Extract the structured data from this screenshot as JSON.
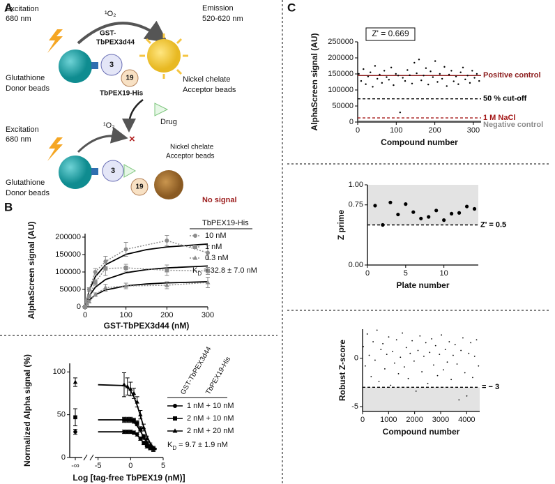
{
  "panel_labels": [
    "A",
    "B",
    "C"
  ],
  "panel_a": {
    "excitation_1": "Excitation",
    "nm_1": "680 nm",
    "o2_1": "¹O₂",
    "emission": "Emission",
    "emission_range": "520-620 nm",
    "gst": "GST-",
    "pex3": "TbPEX3d44",
    "bead3_1": "3",
    "bead19_1": "19",
    "pex19": "TbPEX19-His",
    "donor_1a": "Glutathione",
    "donor_1b": "Donor beads",
    "acceptor_1a": "Nickel chelate",
    "acceptor_1b": "Acceptor beads",
    "drug": "Drug",
    "excitation_2": "Excitation",
    "nm_2": "680 nm",
    "o2_2": "¹O₂",
    "bead3_2": "3",
    "acceptor_2a": "Nickel chelate",
    "acceptor_2b": "Acceptor beads",
    "bead19_2": "19",
    "donor_2a": "Glutathione",
    "donor_2b": "Donor beads",
    "no_signal": "No signal"
  },
  "chart_data": [
    {
      "type": "line",
      "x_label": "GST-TbPEX3d44 (nM)",
      "y_label": "AlphaScreen signal (AU)",
      "x": [
        0,
        5,
        10,
        25,
        50,
        100,
        200,
        300
      ],
      "xlim": [
        0,
        300
      ],
      "ylim": [
        0,
        210000
      ],
      "xticks": [
        0,
        100,
        200,
        300
      ],
      "yticks": [
        0,
        50000,
        100000,
        150000,
        200000
      ],
      "legend_title": "TbPEX19-His",
      "kd": [
        "K",
        "D",
        " = 32.8 ± 7.0 nM"
      ],
      "series": [
        {
          "name": "10 nM",
          "color": "#8c8c8c",
          "marker": "circle",
          "line": "dotted",
          "values": [
            0,
            20000,
            50000,
            100000,
            130000,
            165000,
            190000,
            155000
          ],
          "errors": [
            0,
            3000,
            5000,
            10000,
            15000,
            20000,
            15000,
            20000
          ],
          "fit": {
            "x": [
              0,
              10,
              25,
              50,
              100,
              150,
              200,
              300
            ],
            "values": [
              0,
              46700,
              86500,
              120800,
              150600,
              164100,
              171800,
              180300
            ],
            "color": "#000000"
          }
        },
        {
          "name": "1 nM",
          "color": "#8c8c8c",
          "marker": "square",
          "line": "dotted",
          "values": [
            0,
            15000,
            30000,
            70000,
            110000,
            112000,
            105000,
            103000
          ],
          "errors": [
            0,
            2000,
            4000,
            8000,
            20000,
            10000,
            15000,
            10000
          ],
          "fit": {
            "x": [
              0,
              10,
              25,
              50,
              100,
              150,
              200,
              300
            ],
            "values": [
              0,
              30400,
              56200,
              78500,
              97900,
              106700,
              111700,
              117200
            ],
            "color": "#000000"
          }
        },
        {
          "name": "0.3 nM",
          "color": "#8c8c8c",
          "marker": "triangle",
          "line": "dotted",
          "values": [
            0,
            8000,
            15000,
            35000,
            55000,
            60000,
            62000,
            70000
          ],
          "errors": [
            0,
            2000,
            3000,
            5000,
            10000,
            8000,
            10000,
            15000
          ],
          "fit": {
            "x": [
              0,
              10,
              25,
              50,
              100,
              150,
              200,
              300
            ],
            "values": [
              0,
              18700,
              34600,
              48300,
              60200,
              65600,
              68700,
              72100
            ],
            "color": "#000000"
          }
        }
      ]
    },
    {
      "type": "line",
      "x_label": "Log [tag-free TbPEX19 (nM)]",
      "y_label": "Normalized Alpha signal (%)",
      "x": [
        -1,
        -0.5,
        0,
        0.5,
        1,
        1.5,
        2,
        2.5,
        3,
        3.5
      ],
      "xlim": [
        -5.5,
        5
      ],
      "ylim": [
        0,
        110
      ],
      "xticks": [
        -5,
        0,
        5
      ],
      "yticks": [
        0,
        50,
        100
      ],
      "break_label": "-∞",
      "legend_titles": [
        "GST-TbPEX3d44",
        "TbPEX19-His"
      ],
      "kd": [
        "K",
        "D",
        " = 9.7 ± 1.9 nM"
      ],
      "series": [
        {
          "name": "1 nM + 10 nM",
          "color": "#000000",
          "marker": "circle",
          "values": [
            30,
            30,
            30,
            29,
            27,
            22,
            17,
            13,
            11,
            10
          ],
          "errors": [
            2,
            2,
            2,
            2,
            2,
            2,
            2,
            2,
            2,
            2
          ],
          "neg_inf_value": 30,
          "neg_inf_error": 3,
          "fit": {
            "x": [
              -5,
              -1,
              -0.5,
              0,
              0.5,
              1,
              1.5,
              2,
              2.5,
              3,
              3.5,
              4
            ],
            "values": [
              30,
              30,
              30,
              29.5,
              28.5,
              26,
              22,
              17,
              13,
              11,
              10,
              9.5
            ],
            "color": "#000000"
          }
        },
        {
          "name": "2 nM + 10 nM",
          "color": "#000000",
          "marker": "square",
          "values": [
            44,
            44,
            44,
            43,
            40,
            33,
            24,
            16,
            12,
            10
          ],
          "errors": [
            3,
            3,
            3,
            3,
            3,
            3,
            3,
            3,
            3,
            3
          ],
          "neg_inf_value": 47,
          "neg_inf_error": 10,
          "fit": {
            "x": [
              -5,
              -1,
              -0.5,
              0,
              0.5,
              1,
              1.5,
              2,
              2.5,
              3,
              3.5,
              4
            ],
            "values": [
              44,
              44,
              43.5,
              43,
              41,
              37,
              31,
              24,
              17,
              13,
              11,
              10
            ],
            "color": "#000000"
          }
        },
        {
          "name": "2 nM + 20 nM",
          "color": "#000000",
          "marker": "triangle",
          "values": [
            85,
            83,
            80,
            75,
            65,
            50,
            35,
            22,
            14,
            11
          ],
          "errors": [
            14,
            10,
            8,
            6,
            6,
            5,
            4,
            3,
            3,
            2
          ],
          "neg_inf_value": 88,
          "neg_inf_error": 5,
          "fit": {
            "x": [
              -5,
              -1,
              -0.5,
              0,
              0.5,
              1,
              1.5,
              2,
              2.5,
              3,
              3.5,
              4
            ],
            "values": [
              85,
              84,
              82,
              78,
              71,
              61,
              49,
              36,
              25,
              17,
              12,
              10
            ],
            "color": "#000000"
          }
        }
      ]
    },
    {
      "type": "scatter",
      "x_label": "Compound number",
      "y_label": "AlphaScreen signal (AU)",
      "annotation": "Z' = 0.669",
      "xlim": [
        0,
        320
      ],
      "ylim": [
        0,
        250000
      ],
      "xticks": [
        0,
        100,
        200,
        300
      ],
      "yticks": [
        0,
        50000,
        100000,
        150000,
        200000,
        250000
      ],
      "hlines": [
        {
          "value": 145000,
          "label": "Positive control",
          "color": "#8b1a1a",
          "dash": false
        },
        {
          "value": 72500,
          "label": "50 % cut-off",
          "color": "#000000",
          "dash": true
        },
        {
          "value": 13000,
          "label": "1 M NaCl",
          "color": "#a31515",
          "dash": true
        },
        {
          "value": 3000,
          "label": "Negative control",
          "color": "#8c8c8c",
          "dash": false
        }
      ],
      "series": [
        {
          "color": "#000000",
          "marker": "circle",
          "x": [
            3,
            9,
            15,
            21,
            27,
            33,
            39,
            45,
            51,
            57,
            63,
            69,
            75,
            81,
            87,
            93,
            99,
            105,
            110,
            117,
            123,
            129,
            135,
            141,
            147,
            153,
            159,
            165,
            171,
            177,
            183,
            189,
            195,
            201,
            207,
            213,
            219,
            225,
            231,
            237,
            243,
            249,
            255,
            261,
            267,
            273,
            279,
            285,
            291,
            297,
            303,
            309,
            315
          ],
          "values": [
            150000,
            128000,
            165000,
            118000,
            142000,
            155000,
            110000,
            175000,
            135000,
            148000,
            122000,
            160000,
            140000,
            132000,
            170000,
            115000,
            150000,
            145000,
            30000,
            138000,
            128000,
            162000,
            146000,
            120000,
            185000,
            152000,
            195000,
            130000,
            145000,
            168000,
            117000,
            158000,
            140000,
            190000,
            125000,
            150000,
            135000,
            172000,
            112000,
            148000,
            160000,
            127000,
            142000,
            118000,
            155000,
            170000,
            133000,
            145000,
            122000,
            160000,
            138000,
            150000,
            128000
          ]
        }
      ]
    },
    {
      "type": "scatter",
      "x_label": "Plate number",
      "y_label": "Z prime",
      "xlim": [
        0,
        14.5
      ],
      "ylim": [
        0,
        1
      ],
      "xticks": [
        0,
        5,
        10
      ],
      "yticks": [
        {
          "value": 0,
          "label": "0.00"
        },
        {
          "value": 0.75,
          "label": "0.75"
        },
        {
          "value": 1,
          "label": "1.00"
        }
      ],
      "shade": [
        0.5,
        1
      ],
      "shade_color": "#e3e3e3",
      "hlines": [
        {
          "value": 0.5,
          "label": "Z' = 0.5",
          "color": "#000000",
          "dash": true
        }
      ],
      "series": [
        {
          "color": "#000000",
          "marker": "circle",
          "x": [
            1,
            2,
            3,
            4,
            5,
            6,
            7,
            8,
            9,
            10,
            11,
            12,
            13,
            14
          ],
          "values": [
            0.74,
            0.5,
            0.78,
            0.63,
            0.76,
            0.66,
            0.58,
            0.6,
            0.68,
            0.56,
            0.64,
            0.65,
            0.73,
            0.7
          ]
        }
      ]
    },
    {
      "type": "scatter",
      "x_label": "Compound number",
      "y_label": "Robust Z-score",
      "xlim": [
        0,
        4500
      ],
      "ylim": [
        -5.5,
        3
      ],
      "xticks": [
        0,
        1000,
        2000,
        3000,
        4000
      ],
      "yticks": [
        -5,
        0
      ],
      "shade": [
        -5.5,
        -3
      ],
      "shade_color": "#e3e3e3",
      "hlines": [
        {
          "value": -3,
          "label": "= − 3",
          "color": "#000000",
          "dash": true
        }
      ],
      "series": [
        {
          "color": "#000000",
          "marker": "circle",
          "x": [
            30,
            105,
            180,
            255,
            330,
            405,
            480,
            555,
            630,
            705,
            780,
            855,
            930,
            1005,
            1080,
            1155,
            1230,
            1305,
            1380,
            1455,
            1530,
            1605,
            1680,
            1755,
            1830,
            1905,
            1980,
            2055,
            2130,
            2205,
            2280,
            2355,
            2430,
            2505,
            2580,
            2655,
            2730,
            2805,
            2880,
            2955,
            3030,
            3105,
            3180,
            3255,
            3330,
            3405,
            3480,
            3555,
            3630,
            3705,
            3780,
            3855,
            3930,
            4005,
            4080,
            4155,
            4230,
            4305,
            4380,
            4455
          ],
          "values": [
            1.2,
            -0.8,
            2.5,
            0.3,
            -1.9,
            1.7,
            -0.2,
            2.9,
            -2.4,
            0.9,
            1.5,
            -1.1,
            0.4,
            2.2,
            -2.8,
            0.7,
            -0.5,
            1.9,
            -1.6,
            0.1,
            2.6,
            -0.9,
            1.1,
            -2.1,
            0.5,
            1.8,
            -0.3,
            -3.4,
            0.8,
            2.3,
            -1.4,
            0.2,
            1.6,
            -2.6,
            0.6,
            2.0,
            -0.7,
            1.3,
            -1.8,
            0.4,
            2.4,
            -1.2,
            0.9,
            -0.4,
            1.7,
            -2.2,
            0.3,
            1.4,
            -0.6,
            -4.3,
            0.8,
            2.1,
            -1.5,
            -3.9,
            0.5,
            1.6,
            -2.0,
            0.2,
            1.9,
            -0.8
          ]
        }
      ]
    }
  ]
}
